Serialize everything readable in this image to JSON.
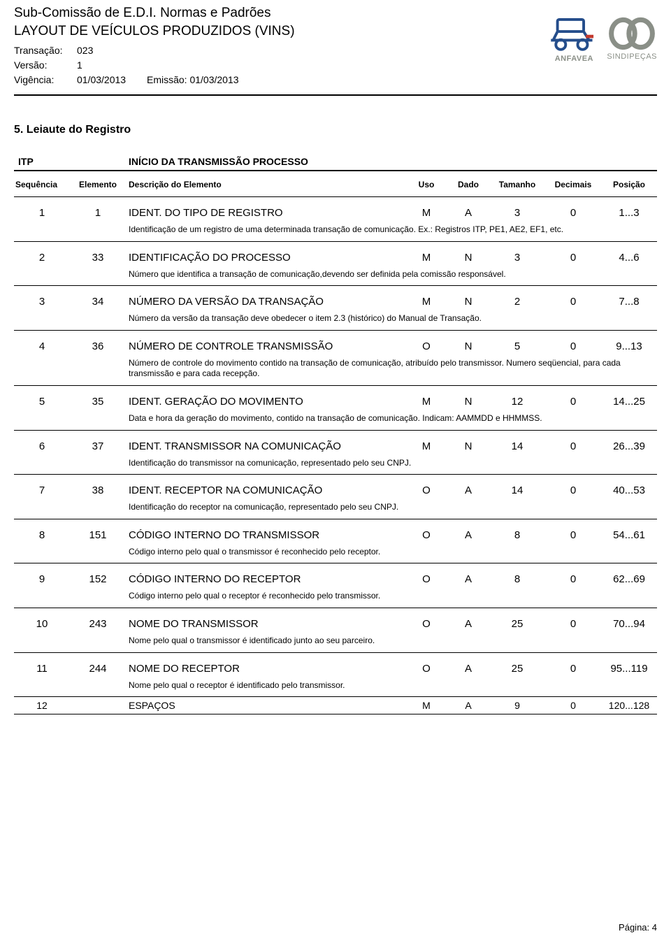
{
  "header": {
    "title": "Sub-Comissão de E.D.I. Normas e Padrões",
    "subtitle": "LAYOUT DE VEÍCULOS PRODUZIDOS (VINS)",
    "transacao_label": "Transação:",
    "transacao_val": "023",
    "versao_label": "Versão:",
    "versao_val": "1",
    "vigencia_label": "Vigência:",
    "vigencia_val": "01/03/2013",
    "emissao_label": "Emissão:",
    "emissao_val": "01/03/2013",
    "logo1_text": "ANFAVEA",
    "logo2_text": "SINDIPEÇAS"
  },
  "section_title": "5. Leiaute do Registro",
  "table": {
    "group_code": "ITP",
    "group_title": "INÍCIO DA TRANSMISSÃO PROCESSO",
    "columns": {
      "seq": "Sequência",
      "elem": "Elemento",
      "desc": "Descrição do Elemento",
      "uso": "Uso",
      "dado": "Dado",
      "tam": "Tamanho",
      "dec": "Decimais",
      "pos": "Posição"
    },
    "rows": [
      {
        "seq": "1",
        "elem": "1",
        "desc": "IDENT. DO TIPO DE REGISTRO",
        "uso": "M",
        "dado": "A",
        "tam": "3",
        "dec": "0",
        "pos": "1...3",
        "note": "Identificação de um registro de uma determinada transação de comunicação. Ex.: Registros ITP, PE1, AE2, EF1, etc."
      },
      {
        "seq": "2",
        "elem": "33",
        "desc": "IDENTIFICAÇÃO DO PROCESSO",
        "uso": "M",
        "dado": "N",
        "tam": "3",
        "dec": "0",
        "pos": "4...6",
        "note": "Número que identifica a transação de comunicação,devendo ser definida pela comissão responsável."
      },
      {
        "seq": "3",
        "elem": "34",
        "desc": "NÚMERO DA VERSÃO DA TRANSAÇÃO",
        "uso": "M",
        "dado": "N",
        "tam": "2",
        "dec": "0",
        "pos": "7...8",
        "note": "Número da versão da transação deve obedecer o item 2.3 (histórico) do Manual de Transação."
      },
      {
        "seq": "4",
        "elem": "36",
        "desc": "NÚMERO DE CONTROLE TRANSMISSÃO",
        "uso": "O",
        "dado": "N",
        "tam": "5",
        "dec": "0",
        "pos": "9...13",
        "note": "Número de controle do movimento contido na transação de comunicação, atribuído pelo transmissor. Numero seqüencial, para cada transmissão e para cada recepção."
      },
      {
        "seq": "5",
        "elem": "35",
        "desc": "IDENT. GERAÇÃO DO MOVIMENTO",
        "uso": "M",
        "dado": "N",
        "tam": "12",
        "dec": "0",
        "pos": "14...25",
        "note": "Data e hora da geração do movimento, contido na transação de comunicação. Indicam: AAMMDD e HHMMSS."
      },
      {
        "seq": "6",
        "elem": "37",
        "desc": "IDENT. TRANSMISSOR NA COMUNICAÇÃO",
        "uso": "M",
        "dado": "N",
        "tam": "14",
        "dec": "0",
        "pos": "26...39",
        "note": "Identificação do transmissor na comunicação, representado pelo seu CNPJ."
      },
      {
        "seq": "7",
        "elem": "38",
        "desc": "IDENT. RECEPTOR NA COMUNICAÇÃO",
        "uso": "O",
        "dado": "A",
        "tam": "14",
        "dec": "0",
        "pos": "40...53",
        "note": "Identificação do receptor na comunicação, representado pelo seu CNPJ."
      },
      {
        "seq": "8",
        "elem": "151",
        "desc": "CÓDIGO INTERNO DO TRANSMISSOR",
        "uso": "O",
        "dado": "A",
        "tam": "8",
        "dec": "0",
        "pos": "54...61",
        "note": "Código interno pelo qual o transmissor é reconhecido pelo receptor."
      },
      {
        "seq": "9",
        "elem": "152",
        "desc": "CÓDIGO INTERNO DO RECEPTOR",
        "uso": "O",
        "dado": "A",
        "tam": "8",
        "dec": "0",
        "pos": "62...69",
        "note": "Código interno pelo qual o receptor é reconhecido pelo transmissor."
      },
      {
        "seq": "10",
        "elem": "243",
        "desc": "NOME DO TRANSMISSOR",
        "uso": "O",
        "dado": "A",
        "tam": "25",
        "dec": "0",
        "pos": "70...94",
        "note": "Nome pelo qual o transmissor é identificado junto ao seu parceiro."
      },
      {
        "seq": "11",
        "elem": "244",
        "desc": "NOME DO RECEPTOR",
        "uso": "O",
        "dado": "A",
        "tam": "25",
        "dec": "0",
        "pos": "95...119",
        "note": "Nome pelo qual o receptor é identificado pelo transmissor."
      },
      {
        "seq": "12",
        "elem": "",
        "desc": "ESPAÇOS",
        "uso": "M",
        "dado": "A",
        "tam": "9",
        "dec": "0",
        "pos": "120...128",
        "note": "",
        "compact": true
      }
    ]
  },
  "footer": {
    "page_label": "Página:",
    "page_num": "4"
  },
  "colors": {
    "text": "#000000",
    "bg": "#ffffff",
    "logo_gray": "#8a8f87",
    "logo_blue": "#244d8b",
    "logo_red": "#c33a2e"
  }
}
